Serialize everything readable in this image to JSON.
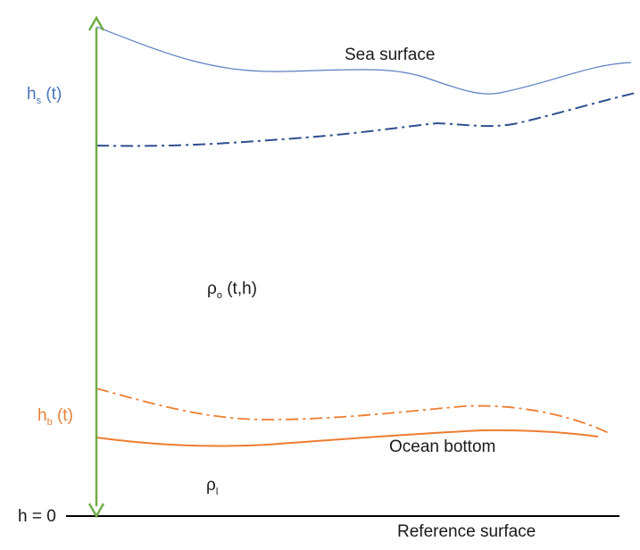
{
  "labels": {
    "sea_surface": "Sea surface",
    "ocean_bottom": "Ocean bottom",
    "reference_surface": "Reference surface",
    "h_zero": "h = 0",
    "hs_main": "h",
    "hs_sub": "s",
    "hs_arg": " (t)",
    "hb_main": "h",
    "hb_sub": "b",
    "hb_arg": " (t)",
    "rho_o_main": "ρ",
    "rho_o_sub": "o",
    "rho_o_arg": " (t,h)",
    "rho_l_main": "ρ",
    "rho_l_sub": "l"
  },
  "colors": {
    "sea_surface_line": "#5b7fbf",
    "sea_dashdot_line": "#2f4f8f",
    "bottom_line": "#ed7d31",
    "axis_arrow": "#70ad47",
    "reference_line": "#000000",
    "blue_text": "#4a76b8",
    "orange_text": "#e8803a"
  }
}
